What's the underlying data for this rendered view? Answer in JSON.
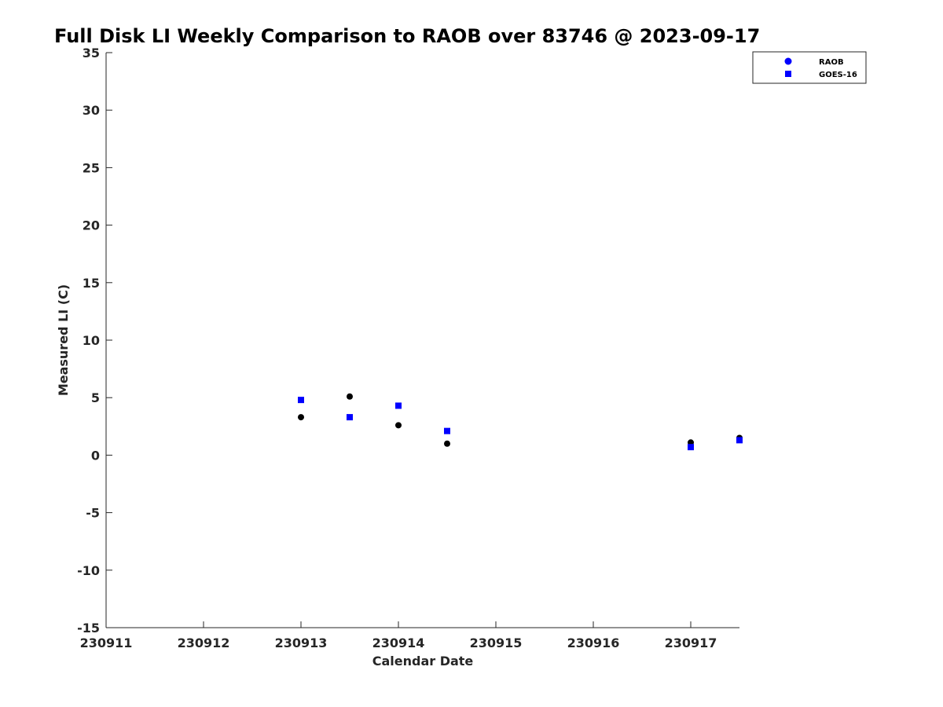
{
  "chart_data": {
    "type": "scatter",
    "title": "Full Disk LI Weekly Comparison to RAOB over 83746 @ 2023-09-17",
    "xlabel": "Calendar Date",
    "ylabel": "Measured LI (C)",
    "xlim": [
      "2023-09-11",
      "2023-09-17 12:00"
    ],
    "ylim": [
      -15,
      35
    ],
    "x_ticks": [
      {
        "value": "2023-09-11",
        "label": "230911"
      },
      {
        "value": "2023-09-12",
        "label": "230912"
      },
      {
        "value": "2023-09-13",
        "label": "230913"
      },
      {
        "value": "2023-09-14",
        "label": "230914"
      },
      {
        "value": "2023-09-15",
        "label": "230915"
      },
      {
        "value": "2023-09-16",
        "label": "230916"
      },
      {
        "value": "2023-09-17",
        "label": "230917"
      }
    ],
    "y_ticks": [
      35,
      30,
      25,
      20,
      15,
      10,
      5,
      0,
      -5,
      -10,
      -15
    ],
    "grid": false,
    "legend_position": "top-right",
    "series": [
      {
        "name": "RAOB",
        "marker": "circle",
        "legend_color": "#0000ff",
        "color": "#000000",
        "points": [
          {
            "x": "2023-09-13 00:00",
            "y": 3.3
          },
          {
            "x": "2023-09-13 12:00",
            "y": 5.1
          },
          {
            "x": "2023-09-14 00:00",
            "y": 2.6
          },
          {
            "x": "2023-09-14 12:00",
            "y": 1.0
          },
          {
            "x": "2023-09-17 00:00",
            "y": 1.1
          },
          {
            "x": "2023-09-17 12:00",
            "y": 1.5
          }
        ]
      },
      {
        "name": "GOES-16",
        "marker": "square",
        "legend_color": "#0000ff",
        "color": "#0000ff",
        "points": [
          {
            "x": "2023-09-13 00:00",
            "y": 4.8
          },
          {
            "x": "2023-09-13 12:00",
            "y": 3.3
          },
          {
            "x": "2023-09-14 00:00",
            "y": 4.3
          },
          {
            "x": "2023-09-14 12:00",
            "y": 2.1
          },
          {
            "x": "2023-09-17 00:00",
            "y": 0.7
          },
          {
            "x": "2023-09-17 12:00",
            "y": 1.3
          }
        ]
      }
    ]
  }
}
